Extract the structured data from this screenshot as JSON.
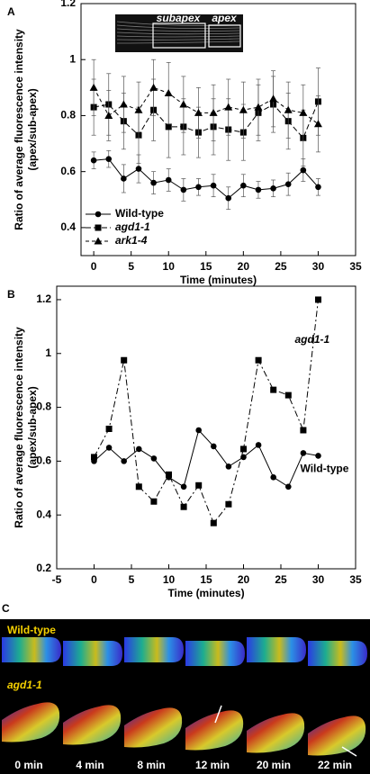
{
  "chart_data": [
    {
      "type": "line",
      "panel": "A",
      "xlabel": "Time (minutes)",
      "ylabel": [
        "Ratio of average fluorescence intensity",
        "(apex/sub-apex)"
      ],
      "x": [
        0,
        2,
        4,
        6,
        8,
        10,
        12,
        14,
        16,
        18,
        20,
        22,
        24,
        26,
        28,
        30
      ],
      "xlim": [
        -1.7,
        35
      ],
      "xticks": [
        0,
        5,
        10,
        15,
        20,
        25,
        30,
        35
      ],
      "ylim": [
        0.3,
        1.2
      ],
      "yticks": [
        0.4,
        0.6,
        0.8,
        1,
        1.2
      ],
      "legend": "lower left",
      "annotations": [
        "subapex",
        "apex"
      ],
      "series": [
        {
          "name": "Wild-type",
          "color": "#000000",
          "marker": "circle",
          "dash": "solid",
          "values": [
            0.64,
            0.645,
            0.575,
            0.61,
            0.56,
            0.57,
            0.535,
            0.545,
            0.55,
            0.505,
            0.55,
            0.535,
            0.54,
            0.555,
            0.605,
            0.545
          ],
          "errors": [
            0.03,
            0.03,
            0.05,
            0.05,
            0.04,
            0.04,
            0.04,
            0.03,
            0.04,
            0.04,
            0.04,
            0.03,
            0.03,
            0.04,
            0.04,
            0.03
          ]
        },
        {
          "name": "agd1-1",
          "color": "#000000",
          "marker": "square",
          "dash": "long-dash",
          "values": [
            0.83,
            0.84,
            0.78,
            0.73,
            0.82,
            0.76,
            0.76,
            0.74,
            0.76,
            0.75,
            0.74,
            0.81,
            0.84,
            0.78,
            0.72,
            0.85
          ],
          "errors": [
            0.1,
            0.11,
            0.1,
            0.1,
            0.11,
            0.11,
            0.1,
            0.09,
            0.1,
            0.11,
            0.1,
            0.1,
            0.1,
            0.1,
            0.1,
            0.12
          ]
        },
        {
          "name": "ark1-4",
          "color": "#000000",
          "marker": "triangle",
          "dash": "short-dash",
          "values": [
            0.9,
            0.8,
            0.84,
            0.82,
            0.9,
            0.88,
            0.84,
            0.81,
            0.81,
            0.83,
            0.82,
            0.83,
            0.86,
            0.82,
            0.81,
            0.77
          ],
          "errors": [
            0.1,
            0.09,
            0.1,
            0.1,
            0.1,
            0.11,
            0.1,
            0.09,
            0.1,
            0.1,
            0.1,
            0.1,
            0.1,
            0.1,
            0.1,
            0.1
          ]
        }
      ]
    },
    {
      "type": "line",
      "panel": "B",
      "xlabel": "Time (minutes)",
      "ylabel": [
        "Ratio of average fluorescence intensity",
        "(apex/sub-apex)"
      ],
      "x": [
        0,
        2,
        4,
        6,
        8,
        10,
        12,
        14,
        16,
        18,
        20,
        22,
        24,
        26,
        28,
        30
      ],
      "xlim": [
        -5,
        35
      ],
      "xticks": [
        -5,
        0,
        5,
        10,
        15,
        20,
        25,
        30,
        35
      ],
      "ylim": [
        0.2,
        1.25
      ],
      "yticks": [
        0.2,
        0.4,
        0.6,
        0.8,
        1,
        1.2
      ],
      "annotations": [
        "agd1-1",
        "Wild-type"
      ],
      "series": [
        {
          "name": "Wild-type",
          "color": "#000000",
          "marker": "circle",
          "dash": "solid",
          "values": [
            0.6,
            0.65,
            0.6,
            0.645,
            0.61,
            0.54,
            0.505,
            0.715,
            0.655,
            0.58,
            0.615,
            0.66,
            0.54,
            0.505,
            0.63,
            0.62
          ]
        },
        {
          "name": "agd1-1",
          "color": "#000000",
          "marker": "square",
          "dash": "dash-dot",
          "values": [
            0.615,
            0.72,
            0.975,
            0.505,
            0.45,
            0.55,
            0.43,
            0.51,
            0.37,
            0.44,
            0.645,
            0.975,
            0.865,
            0.845,
            0.715,
            1.2
          ]
        }
      ]
    }
  ],
  "panel_c": {
    "panel": "C",
    "rows": [
      "Wild-type",
      "agd1-1"
    ],
    "times": [
      "0 min",
      "4 min",
      "8 min",
      "12 min",
      "20 min",
      "22 min"
    ]
  }
}
